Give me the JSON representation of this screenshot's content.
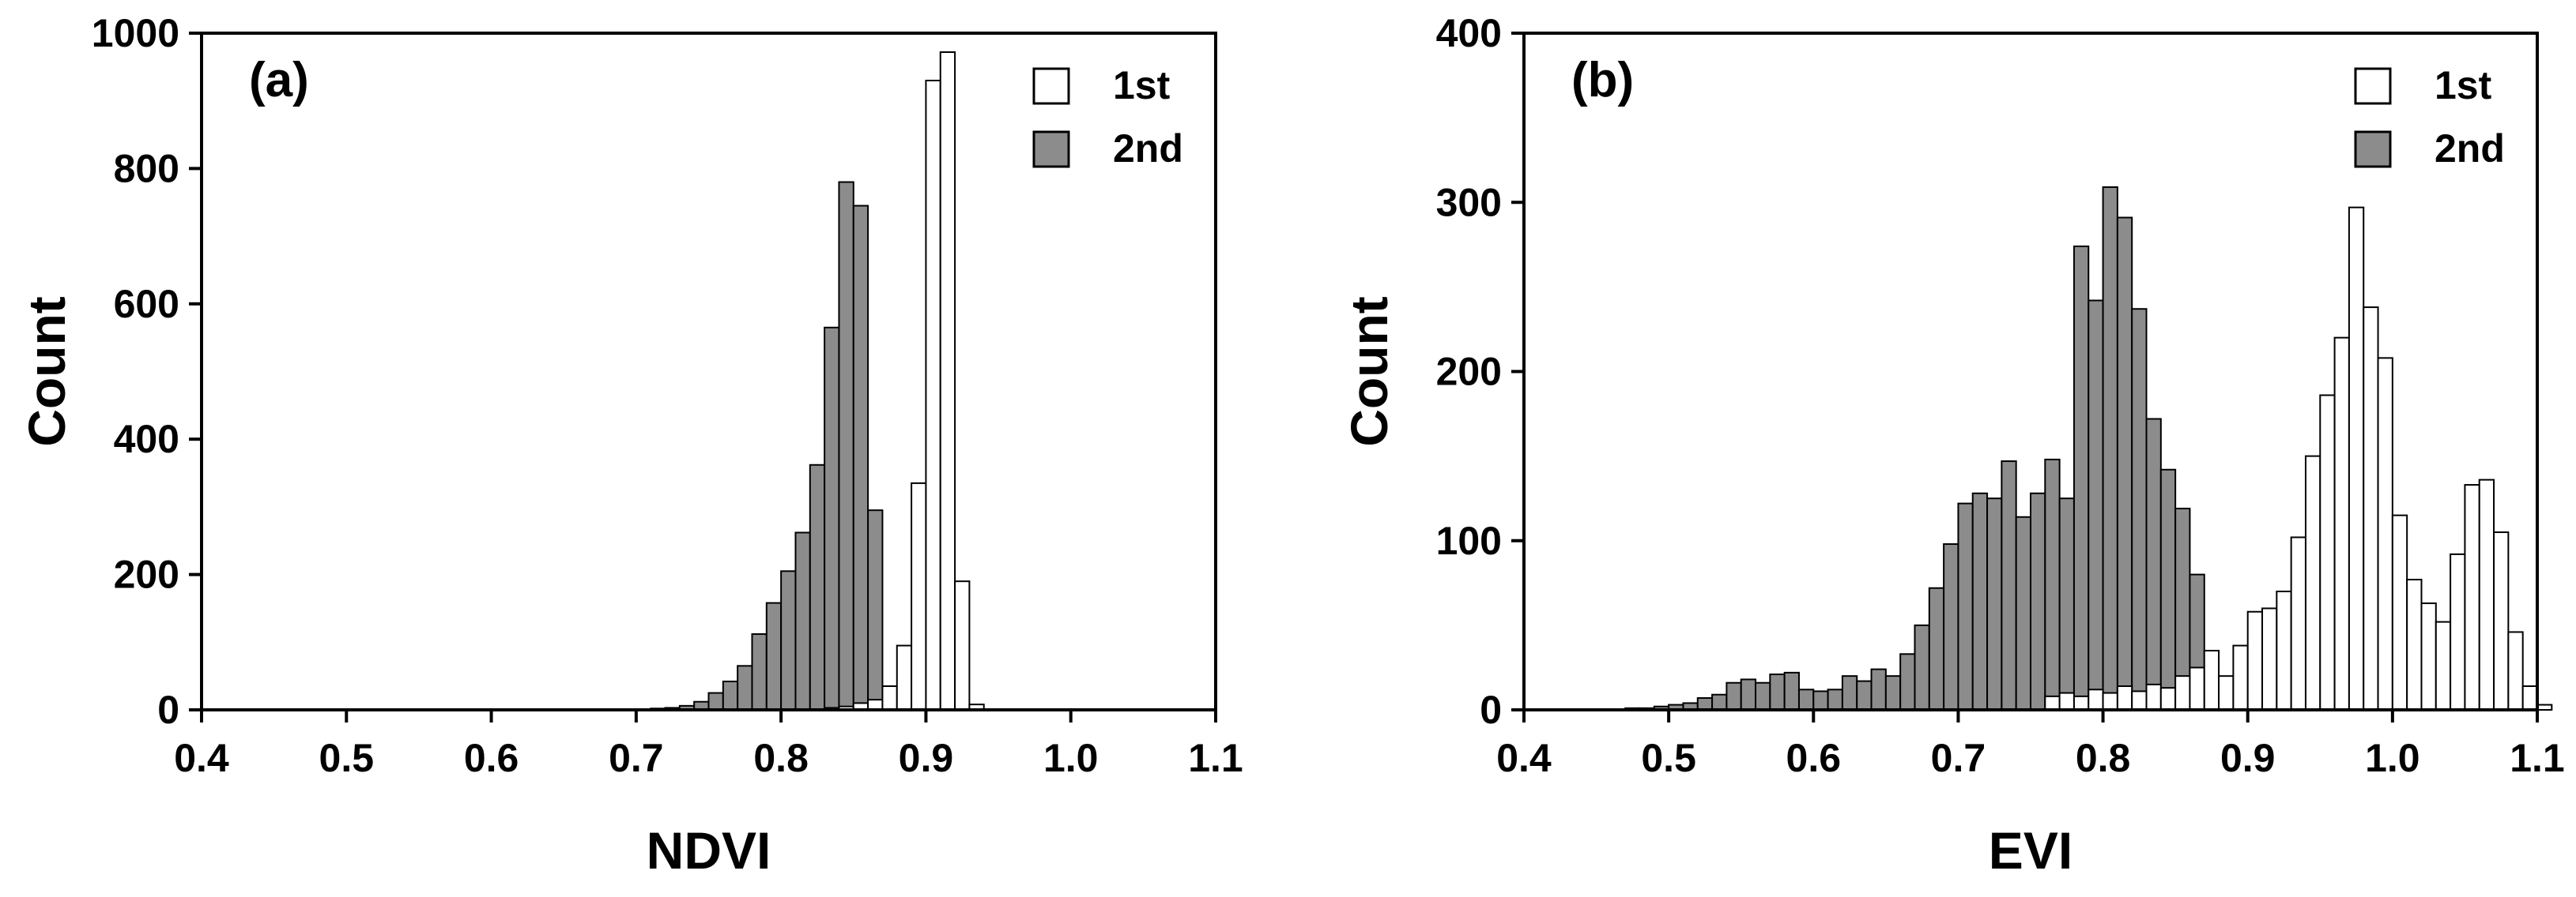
{
  "chart_data": [
    {
      "type": "bar",
      "panel_label": "(a)",
      "xlabel": "NDVI",
      "ylabel": "Count",
      "xlim": [
        0.4,
        1.1
      ],
      "ylim": [
        0,
        1000
      ],
      "xticks": [
        "0.4",
        "0.5",
        "0.6",
        "0.7",
        "0.8",
        "0.9",
        "1.0",
        "1.1"
      ],
      "yticks": [
        "0",
        "200",
        "400",
        "600",
        "800",
        "1000"
      ],
      "bin_width": 0.01,
      "legend_position": "top-right",
      "series": [
        {
          "name": "1st",
          "color": "#ffffff",
          "bins": [
            [
              0.83,
              3
            ],
            [
              0.84,
              5
            ],
            [
              0.85,
              10
            ],
            [
              0.86,
              15
            ],
            [
              0.87,
              35
            ],
            [
              0.88,
              95
            ],
            [
              0.89,
              335
            ],
            [
              0.9,
              930
            ],
            [
              0.91,
              972
            ],
            [
              0.92,
              190
            ],
            [
              0.93,
              8
            ]
          ]
        },
        {
          "name": "2nd",
          "color": "#8c8c8c",
          "bins": [
            [
              0.71,
              2
            ],
            [
              0.72,
              3
            ],
            [
              0.73,
              6
            ],
            [
              0.74,
              12
            ],
            [
              0.75,
              25
            ],
            [
              0.76,
              42
            ],
            [
              0.77,
              65
            ],
            [
              0.78,
              112
            ],
            [
              0.79,
              158
            ],
            [
              0.8,
              205
            ],
            [
              0.81,
              262
            ],
            [
              0.82,
              362
            ],
            [
              0.83,
              565
            ],
            [
              0.84,
              780
            ],
            [
              0.85,
              745
            ],
            [
              0.86,
              295
            ],
            [
              0.87,
              10
            ],
            [
              0.88,
              3
            ]
          ]
        }
      ]
    },
    {
      "type": "bar",
      "panel_label": "(b)",
      "xlabel": "EVI",
      "ylabel": "Count",
      "xlim": [
        0.4,
        1.1
      ],
      "ylim": [
        0,
        400
      ],
      "xticks": [
        "0.4",
        "0.5",
        "0.6",
        "0.7",
        "0.8",
        "0.9",
        "1.0",
        "1.1"
      ],
      "yticks": [
        "0",
        "100",
        "200",
        "300",
        "400"
      ],
      "bin_width": 0.01,
      "legend_position": "top-right",
      "series": [
        {
          "name": "1st",
          "color": "#ffffff",
          "bins": [
            [
              0.76,
              8
            ],
            [
              0.77,
              10
            ],
            [
              0.78,
              8
            ],
            [
              0.79,
              12
            ],
            [
              0.8,
              10
            ],
            [
              0.81,
              14
            ],
            [
              0.82,
              11
            ],
            [
              0.83,
              15
            ],
            [
              0.84,
              13
            ],
            [
              0.85,
              20
            ],
            [
              0.86,
              25
            ],
            [
              0.87,
              35
            ],
            [
              0.88,
              20
            ],
            [
              0.89,
              38
            ],
            [
              0.9,
              58
            ],
            [
              0.91,
              60
            ],
            [
              0.92,
              70
            ],
            [
              0.93,
              102
            ],
            [
              0.94,
              150
            ],
            [
              0.95,
              186
            ],
            [
              0.96,
              220
            ],
            [
              0.97,
              297
            ],
            [
              0.98,
              238
            ],
            [
              0.99,
              208
            ],
            [
              1.0,
              115
            ],
            [
              1.01,
              77
            ],
            [
              1.02,
              63
            ],
            [
              1.03,
              52
            ],
            [
              1.04,
              92
            ],
            [
              1.05,
              133
            ],
            [
              1.06,
              136
            ],
            [
              1.07,
              105
            ],
            [
              1.08,
              46
            ],
            [
              1.09,
              14
            ],
            [
              1.1,
              3
            ]
          ]
        },
        {
          "name": "2nd",
          "color": "#8c8c8c",
          "bins": [
            [
              0.47,
              1
            ],
            [
              0.48,
              1
            ],
            [
              0.49,
              2
            ],
            [
              0.5,
              3
            ],
            [
              0.51,
              4
            ],
            [
              0.52,
              7
            ],
            [
              0.53,
              9
            ],
            [
              0.54,
              16
            ],
            [
              0.55,
              18
            ],
            [
              0.56,
              16
            ],
            [
              0.57,
              21
            ],
            [
              0.58,
              22
            ],
            [
              0.59,
              12
            ],
            [
              0.6,
              11
            ],
            [
              0.61,
              12
            ],
            [
              0.62,
              20
            ],
            [
              0.63,
              17
            ],
            [
              0.64,
              24
            ],
            [
              0.65,
              20
            ],
            [
              0.66,
              33
            ],
            [
              0.67,
              50
            ],
            [
              0.68,
              72
            ],
            [
              0.69,
              98
            ],
            [
              0.7,
              122
            ],
            [
              0.71,
              128
            ],
            [
              0.72,
              125
            ],
            [
              0.73,
              147
            ],
            [
              0.74,
              114
            ],
            [
              0.75,
              128
            ],
            [
              0.76,
              148
            ],
            [
              0.77,
              125
            ],
            [
              0.78,
              274
            ],
            [
              0.79,
              242
            ],
            [
              0.8,
              309
            ],
            [
              0.81,
              291
            ],
            [
              0.82,
              237
            ],
            [
              0.83,
              172
            ],
            [
              0.84,
              142
            ],
            [
              0.85,
              119
            ],
            [
              0.86,
              80
            ],
            [
              0.87,
              19
            ],
            [
              0.88,
              10
            ]
          ]
        }
      ]
    }
  ]
}
